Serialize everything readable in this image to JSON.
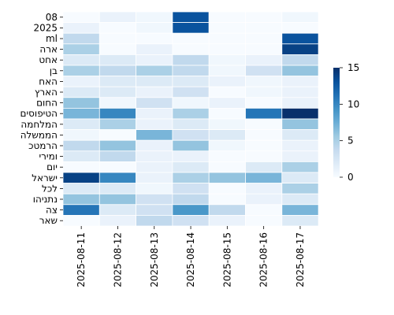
{
  "chart_data": {
    "type": "heatmap",
    "title": "",
    "xlabel": "",
    "ylabel": "",
    "x": [
      "2025-08-11",
      "2025-08-12",
      "2025-08-13",
      "2025-08-14",
      "2025-08-15",
      "2025-08-16",
      "2025-08-17"
    ],
    "y": [
      "08",
      "2025",
      "ml",
      "ארה",
      "אחט",
      "בן",
      "האח",
      "הארץ",
      "החום",
      "הטיפוסים",
      "המלחמה",
      "הממשלה",
      "הרמטכ",
      "ומירי",
      "יום",
      "ישראל",
      "לכל",
      "נתניהו",
      "צה",
      "שאר"
    ],
    "values": [
      [
        0,
        1,
        0.5,
        13,
        0,
        0,
        0.5
      ],
      [
        1,
        0,
        0.5,
        13,
        0,
        0,
        0
      ],
      [
        4,
        0,
        0,
        0,
        0,
        0,
        13
      ],
      [
        5,
        0,
        1,
        0,
        0,
        0,
        14
      ],
      [
        2,
        2,
        1,
        4,
        0.5,
        1,
        4
      ],
      [
        5,
        4,
        5,
        4,
        0.5,
        3,
        6
      ],
      [
        1,
        2,
        2,
        2,
        1,
        0.5,
        1
      ],
      [
        2,
        2,
        1,
        3,
        0,
        0.5,
        1
      ],
      [
        6,
        0.5,
        3,
        0.5,
        1,
        0,
        1
      ],
      [
        7,
        10,
        1,
        5,
        0,
        11,
        15
      ],
      [
        2,
        5,
        1,
        2,
        0.5,
        0,
        6
      ],
      [
        0.5,
        0,
        7,
        3,
        2,
        0,
        2
      ],
      [
        4,
        6,
        1,
        6,
        0.5,
        0,
        1
      ],
      [
        2,
        4,
        1,
        1,
        0,
        0,
        1
      ],
      [
        0,
        0,
        1,
        2,
        0,
        2,
        5
      ],
      [
        14,
        10,
        1,
        5,
        6,
        7,
        2
      ],
      [
        2,
        2,
        0.5,
        3,
        0,
        1,
        5
      ],
      [
        6,
        6,
        3,
        4,
        0,
        1,
        2
      ],
      [
        11,
        2,
        3,
        9,
        4,
        0,
        7
      ],
      [
        0,
        1,
        4,
        3,
        1,
        0,
        2
      ]
    ],
    "colorbar": {
      "min": 0,
      "max": 15,
      "ticks": [
        0,
        5,
        10,
        15
      ],
      "colormap": [
        "#f7fbff",
        "#deebf7",
        "#c6dbef",
        "#9ecae1",
        "#6baed6",
        "#4292c6",
        "#2171b5",
        "#08519c",
        "#08306b"
      ]
    }
  }
}
